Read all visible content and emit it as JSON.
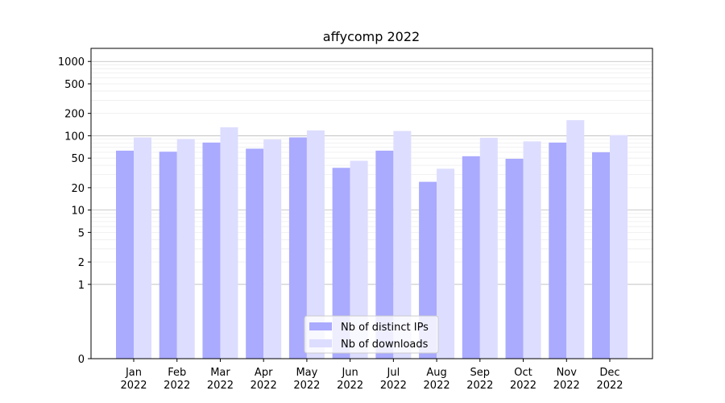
{
  "chart_data": {
    "type": "bar",
    "title": "affycomp 2022",
    "xlabel": "",
    "ylabel": "",
    "yscale": "symlog",
    "ylim": [
      0,
      1500
    ],
    "yticks": [
      0,
      1,
      2,
      5,
      10,
      20,
      50,
      100,
      200,
      500,
      1000
    ],
    "ytick_labels": [
      "0",
      "1",
      "2",
      "5",
      "10",
      "20",
      "50",
      "100",
      "200",
      "500",
      "1000"
    ],
    "grid": "horizontal",
    "legend_position": "bottom-center",
    "categories": [
      [
        "Jan",
        "2022"
      ],
      [
        "Feb",
        "2022"
      ],
      [
        "Mar",
        "2022"
      ],
      [
        "Apr",
        "2022"
      ],
      [
        "May",
        "2022"
      ],
      [
        "Jun",
        "2022"
      ],
      [
        "Jul",
        "2022"
      ],
      [
        "Aug",
        "2022"
      ],
      [
        "Sep",
        "2022"
      ],
      [
        "Oct",
        "2022"
      ],
      [
        "Nov",
        "2022"
      ],
      [
        "Dec",
        "2022"
      ]
    ],
    "series": [
      {
        "name": "Nb of distinct IPs",
        "color": "#aaaaff",
        "values": [
          63,
          61,
          81,
          67,
          95,
          37,
          63,
          24,
          53,
          49,
          81,
          60
        ]
      },
      {
        "name": "Nb of downloads",
        "color": "#ddddff",
        "values": [
          95,
          90,
          130,
          89,
          118,
          46,
          116,
          36,
          94,
          84,
          162,
          102
        ]
      }
    ]
  }
}
